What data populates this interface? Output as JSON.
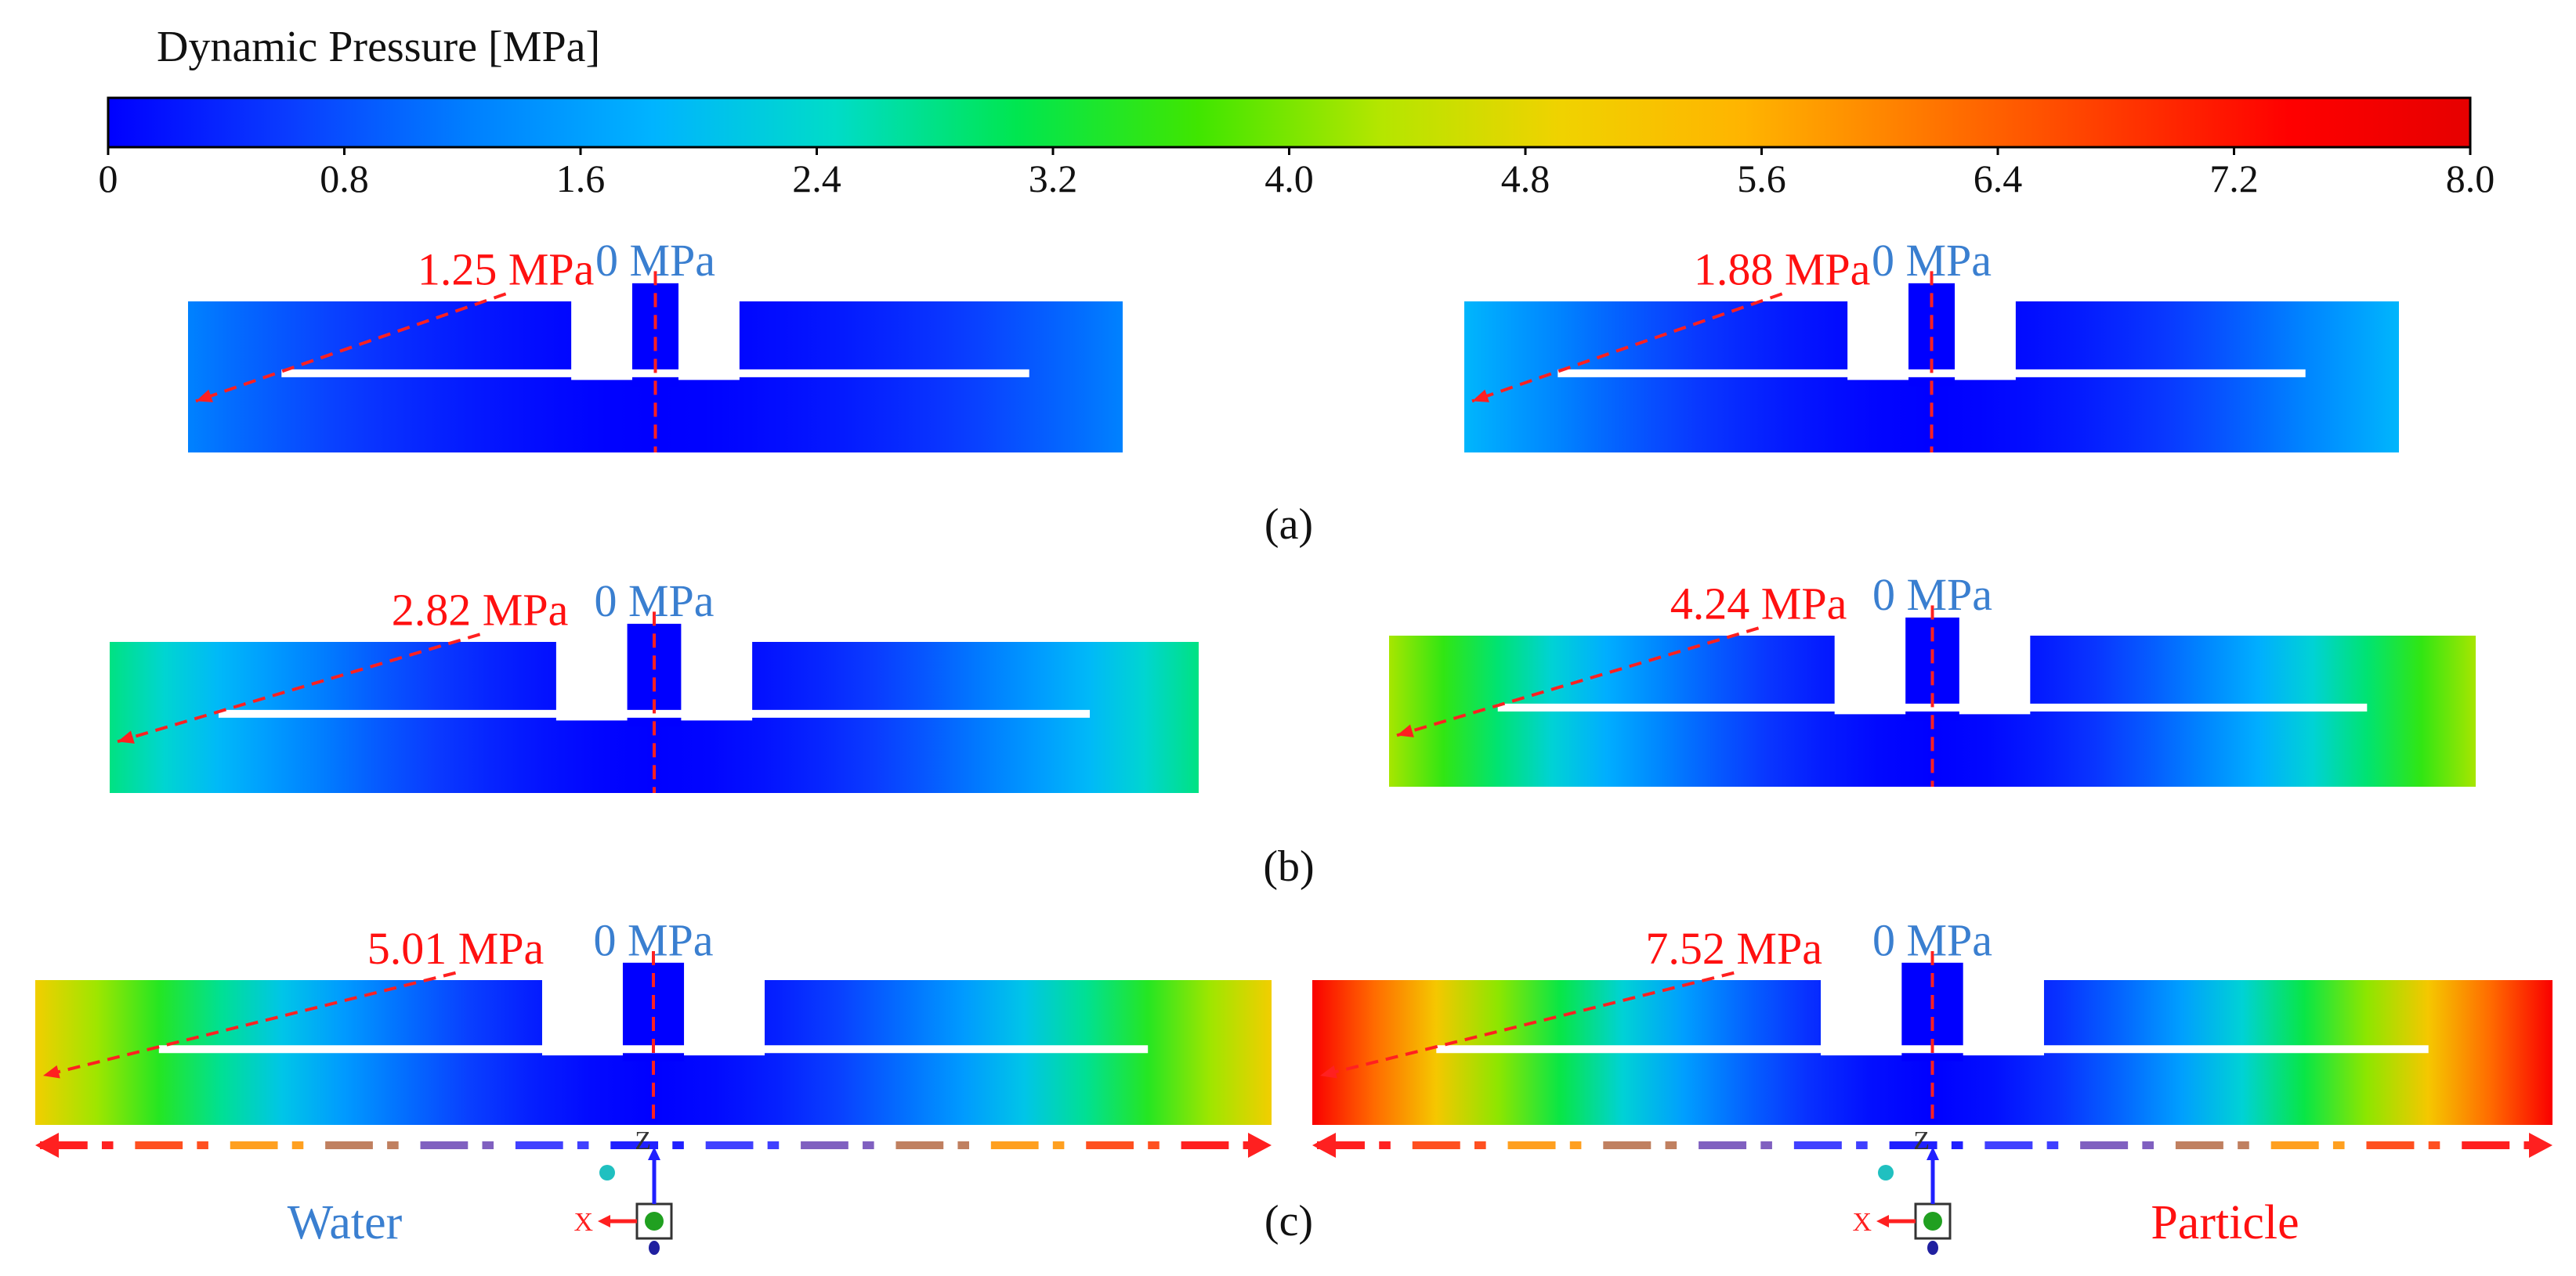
{
  "colorbar": {
    "title": "Dynamic Pressure [MPa]",
    "min": 0,
    "max": 8.0,
    "ticks": [
      "0",
      "0.8",
      "1.6",
      "2.4",
      "3.2",
      "4.0",
      "4.8",
      "5.6",
      "6.4",
      "7.2",
      "8.0"
    ],
    "colors": [
      "#0000ff",
      "#0a3cff",
      "#0080ff",
      "#00b4ff",
      "#00dcc8",
      "#00e650",
      "#40e600",
      "#b4e600",
      "#f0d200",
      "#ffb400",
      "#ff7800",
      "#ff3c00",
      "#ff0000",
      "#e60000"
    ]
  },
  "panels": [
    {
      "row_label": "(a)",
      "left": {
        "center_label": "0 MPa",
        "edge_label": "1.25 MPa",
        "edge_value": 1.25
      },
      "right": {
        "center_label": "0 MPa",
        "edge_label": "1.88 MPa",
        "edge_value": 1.88
      }
    },
    {
      "row_label": "(b)",
      "left": {
        "center_label": "0 MPa",
        "edge_label": "2.82 MPa",
        "edge_value": 2.82
      },
      "right": {
        "center_label": "0 MPa",
        "edge_label": "4.24 MPa",
        "edge_value": 4.24
      }
    },
    {
      "row_label": "(c)",
      "left": {
        "center_label": "0 MPa",
        "edge_label": "5.01 MPa",
        "edge_value": 5.01
      },
      "right": {
        "center_label": "0 MPa",
        "edge_label": "7.52 MPa",
        "edge_value": 7.52
      }
    }
  ],
  "column_labels": {
    "left": "Water",
    "right": "Particle"
  },
  "axes_triad": {
    "vertical": "Z",
    "horizontal": "X"
  },
  "label_colors": {
    "center": "#3a7fd0",
    "edge": "#ff1010",
    "dash": "#ff2020"
  }
}
